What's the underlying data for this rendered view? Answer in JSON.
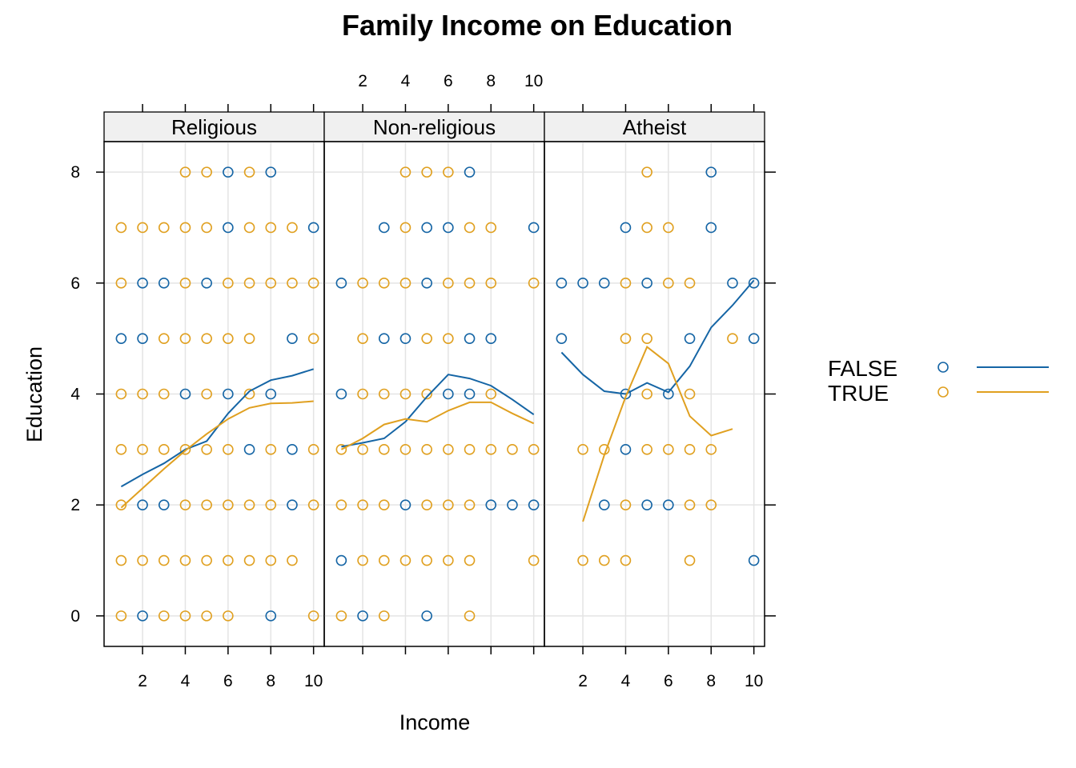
{
  "chart_data": {
    "type": "scatter",
    "title": "Family Income on Education",
    "xlabel": "Income",
    "ylabel": "Education",
    "xlim": [
      0.2,
      10.5
    ],
    "ylim": [
      -0.55,
      8.55
    ],
    "x_ticks": [
      2,
      4,
      6,
      8,
      10
    ],
    "y_ticks": [
      0,
      2,
      4,
      6,
      8
    ],
    "grid": true,
    "layout": "three panels side by side, legend right",
    "colors": {
      "FALSE": "#1565a5",
      "TRUE": "#e0a020"
    },
    "legend": [
      {
        "name": "FALSE",
        "color": "#1565a5"
      },
      {
        "name": "TRUE",
        "color": "#e0a020"
      }
    ],
    "panels": [
      {
        "label": "Religious",
        "points": {
          "FALSE": [
            [
              1,
              5
            ],
            [
              2,
              5
            ],
            [
              2,
              6
            ],
            [
              2,
              2
            ],
            [
              2,
              0
            ],
            [
              3,
              2
            ],
            [
              3,
              6
            ],
            [
              4,
              4
            ],
            [
              5,
              6
            ],
            [
              6,
              8
            ],
            [
              6,
              7
            ],
            [
              6,
              4
            ],
            [
              7,
              3
            ],
            [
              8,
              8
            ],
            [
              8,
              4
            ],
            [
              8,
              0
            ],
            [
              9,
              5
            ],
            [
              9,
              3
            ],
            [
              9,
              2
            ],
            [
              10,
              7
            ]
          ],
          "TRUE": [
            [
              1,
              7
            ],
            [
              1,
              6
            ],
            [
              1,
              4
            ],
            [
              1,
              3
            ],
            [
              1,
              2
            ],
            [
              1,
              1
            ],
            [
              1,
              0
            ],
            [
              2,
              7
            ],
            [
              2,
              4
            ],
            [
              2,
              3
            ],
            [
              2,
              1
            ],
            [
              3,
              7
            ],
            [
              3,
              5
            ],
            [
              3,
              4
            ],
            [
              3,
              3
            ],
            [
              3,
              1
            ],
            [
              3,
              0
            ],
            [
              4,
              8
            ],
            [
              4,
              7
            ],
            [
              4,
              6
            ],
            [
              4,
              5
            ],
            [
              4,
              3
            ],
            [
              4,
              2
            ],
            [
              4,
              1
            ],
            [
              4,
              0
            ],
            [
              5,
              8
            ],
            [
              5,
              7
            ],
            [
              5,
              5
            ],
            [
              5,
              4
            ],
            [
              5,
              3
            ],
            [
              5,
              2
            ],
            [
              5,
              1
            ],
            [
              5,
              0
            ],
            [
              6,
              6
            ],
            [
              6,
              5
            ],
            [
              6,
              3
            ],
            [
              6,
              2
            ],
            [
              6,
              1
            ],
            [
              6,
              0
            ],
            [
              7,
              8
            ],
            [
              7,
              7
            ],
            [
              7,
              6
            ],
            [
              7,
              5
            ],
            [
              7,
              4
            ],
            [
              7,
              2
            ],
            [
              7,
              1
            ],
            [
              8,
              7
            ],
            [
              8,
              6
            ],
            [
              8,
              3
            ],
            [
              8,
              2
            ],
            [
              8,
              1
            ],
            [
              9,
              7
            ],
            [
              9,
              6
            ],
            [
              9,
              1
            ],
            [
              10,
              6
            ],
            [
              10,
              5
            ],
            [
              10,
              3
            ],
            [
              10,
              2
            ],
            [
              10,
              0
            ]
          ]
        },
        "smooth": {
          "FALSE": [
            [
              1,
              2.33
            ],
            [
              2,
              2.55
            ],
            [
              3,
              2.75
            ],
            [
              4,
              3.0
            ],
            [
              5,
              3.15
            ],
            [
              6,
              3.65
            ],
            [
              7,
              4.05
            ],
            [
              8,
              4.25
            ],
            [
              9,
              4.33
            ],
            [
              10,
              4.45
            ]
          ],
          "TRUE": [
            [
              1,
              1.95
            ],
            [
              2,
              2.3
            ],
            [
              3,
              2.65
            ],
            [
              4,
              2.98
            ],
            [
              5,
              3.28
            ],
            [
              6,
              3.55
            ],
            [
              7,
              3.75
            ],
            [
              8,
              3.83
            ],
            [
              9,
              3.84
            ],
            [
              10,
              3.87
            ]
          ]
        }
      },
      {
        "label": "Non-religious",
        "points": {
          "FALSE": [
            [
              1,
              6
            ],
            [
              1,
              4
            ],
            [
              1,
              1
            ],
            [
              2,
              0
            ],
            [
              3,
              7
            ],
            [
              3,
              5
            ],
            [
              4,
              5
            ],
            [
              4,
              2
            ],
            [
              5,
              7
            ],
            [
              5,
              6
            ],
            [
              5,
              0
            ],
            [
              6,
              7
            ],
            [
              6,
              4
            ],
            [
              7,
              8
            ],
            [
              7,
              5
            ],
            [
              7,
              4
            ],
            [
              8,
              5
            ],
            [
              8,
              2
            ],
            [
              9,
              2
            ],
            [
              10,
              7
            ],
            [
              10,
              2
            ]
          ],
          "TRUE": [
            [
              1,
              3
            ],
            [
              1,
              2
            ],
            [
              1,
              0
            ],
            [
              2,
              6
            ],
            [
              2,
              5
            ],
            [
              2,
              4
            ],
            [
              2,
              3
            ],
            [
              2,
              2
            ],
            [
              2,
              1
            ],
            [
              3,
              6
            ],
            [
              3,
              4
            ],
            [
              3,
              3
            ],
            [
              3,
              2
            ],
            [
              3,
              1
            ],
            [
              3,
              0
            ],
            [
              4,
              8
            ],
            [
              4,
              7
            ],
            [
              4,
              6
            ],
            [
              4,
              4
            ],
            [
              4,
              3
            ],
            [
              4,
              1
            ],
            [
              5,
              8
            ],
            [
              5,
              5
            ],
            [
              5,
              4
            ],
            [
              5,
              3
            ],
            [
              5,
              2
            ],
            [
              5,
              1
            ],
            [
              6,
              8
            ],
            [
              6,
              6
            ],
            [
              6,
              5
            ],
            [
              6,
              3
            ],
            [
              6,
              2
            ],
            [
              6,
              1
            ],
            [
              7,
              7
            ],
            [
              7,
              6
            ],
            [
              7,
              3
            ],
            [
              7,
              2
            ],
            [
              7,
              1
            ],
            [
              7,
              0
            ],
            [
              8,
              7
            ],
            [
              8,
              6
            ],
            [
              8,
              4
            ],
            [
              8,
              3
            ],
            [
              9,
              3
            ],
            [
              10,
              6
            ],
            [
              10,
              3
            ],
            [
              10,
              1
            ]
          ]
        },
        "smooth": {
          "FALSE": [
            [
              1,
              3.05
            ],
            [
              2,
              3.12
            ],
            [
              3,
              3.2
            ],
            [
              4,
              3.5
            ],
            [
              5,
              3.95
            ],
            [
              6,
              4.35
            ],
            [
              7,
              4.28
            ],
            [
              8,
              4.15
            ],
            [
              9,
              3.9
            ],
            [
              10,
              3.63
            ]
          ],
          "TRUE": [
            [
              1,
              3.0
            ],
            [
              2,
              3.2
            ],
            [
              3,
              3.45
            ],
            [
              4,
              3.55
            ],
            [
              5,
              3.5
            ],
            [
              6,
              3.7
            ],
            [
              7,
              3.85
            ],
            [
              8,
              3.85
            ],
            [
              9,
              3.65
            ],
            [
              10,
              3.47
            ]
          ]
        }
      },
      {
        "label": "Atheist",
        "points": {
          "FALSE": [
            [
              1,
              6
            ],
            [
              1,
              5
            ],
            [
              2,
              6
            ],
            [
              3,
              6
            ],
            [
              3,
              2
            ],
            [
              4,
              7
            ],
            [
              4,
              4
            ],
            [
              4,
              3
            ],
            [
              5,
              6
            ],
            [
              5,
              2
            ],
            [
              6,
              4
            ],
            [
              6,
              2
            ],
            [
              7,
              5
            ],
            [
              8,
              8
            ],
            [
              8,
              7
            ],
            [
              9,
              6
            ],
            [
              10,
              6
            ],
            [
              10,
              5
            ],
            [
              10,
              1
            ]
          ],
          "TRUE": [
            [
              2,
              3
            ],
            [
              2,
              1
            ],
            [
              3,
              3
            ],
            [
              3,
              1
            ],
            [
              4,
              6
            ],
            [
              4,
              5
            ],
            [
              4,
              2
            ],
            [
              4,
              1
            ],
            [
              5,
              8
            ],
            [
              5,
              7
            ],
            [
              5,
              5
            ],
            [
              5,
              4
            ],
            [
              5,
              3
            ],
            [
              6,
              7
            ],
            [
              6,
              6
            ],
            [
              6,
              3
            ],
            [
              7,
              6
            ],
            [
              7,
              4
            ],
            [
              7,
              3
            ],
            [
              7,
              2
            ],
            [
              7,
              1
            ],
            [
              8,
              3
            ],
            [
              8,
              2
            ],
            [
              9,
              5
            ]
          ]
        },
        "smooth": {
          "FALSE": [
            [
              1,
              4.75
            ],
            [
              2,
              4.35
            ],
            [
              3,
              4.05
            ],
            [
              4,
              4.0
            ],
            [
              5,
              4.2
            ],
            [
              6,
              4.03
            ],
            [
              7,
              4.5
            ],
            [
              8,
              5.2
            ],
            [
              9,
              5.6
            ],
            [
              10,
              6.05
            ]
          ],
          "TRUE": [
            [
              2,
              1.7
            ],
            [
              3,
              2.9
            ],
            [
              4,
              3.95
            ],
            [
              5,
              4.85
            ],
            [
              6,
              4.55
            ],
            [
              7,
              3.6
            ],
            [
              8,
              3.25
            ],
            [
              9,
              3.37
            ]
          ]
        }
      }
    ]
  }
}
